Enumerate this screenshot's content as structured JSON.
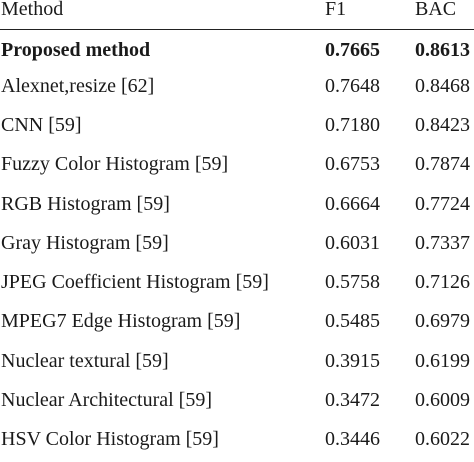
{
  "table": {
    "headers": {
      "method": "Method",
      "f1": "F1",
      "bac": "BAC"
    },
    "rows": [
      {
        "method": "Proposed method",
        "f1": "0.7665",
        "bac": "0.8613",
        "bold": true
      },
      {
        "method": "Alexnet,resize [62]",
        "f1": "0.7648",
        "bac": "0.8468"
      },
      {
        "method": "CNN [59]",
        "f1": "0.7180",
        "bac": "0.8423"
      },
      {
        "method": "Fuzzy Color Histogram [59]",
        "f1": "0.6753",
        "bac": "0.7874"
      },
      {
        "method": "RGB Histogram [59]",
        "f1": "0.6664",
        "bac": "0.7724"
      },
      {
        "method": "Gray Histogram [59]",
        "f1": "0.6031",
        "bac": "0.7337"
      },
      {
        "method": "JPEG Coefficient Histogram [59]",
        "f1": "0.5758",
        "bac": "0.7126"
      },
      {
        "method": "MPEG7 Edge Histogram [59]",
        "f1": "0.5485",
        "bac": "0.6979"
      },
      {
        "method": "Nuclear textural [59]",
        "f1": "0.3915",
        "bac": "0.6199"
      },
      {
        "method": "Nuclear Architectural [59]",
        "f1": "0.3472",
        "bac": "0.6009"
      },
      {
        "method": "HSV Color Histogram [59]",
        "f1": "0.3446",
        "bac": "0.6022"
      }
    ]
  }
}
